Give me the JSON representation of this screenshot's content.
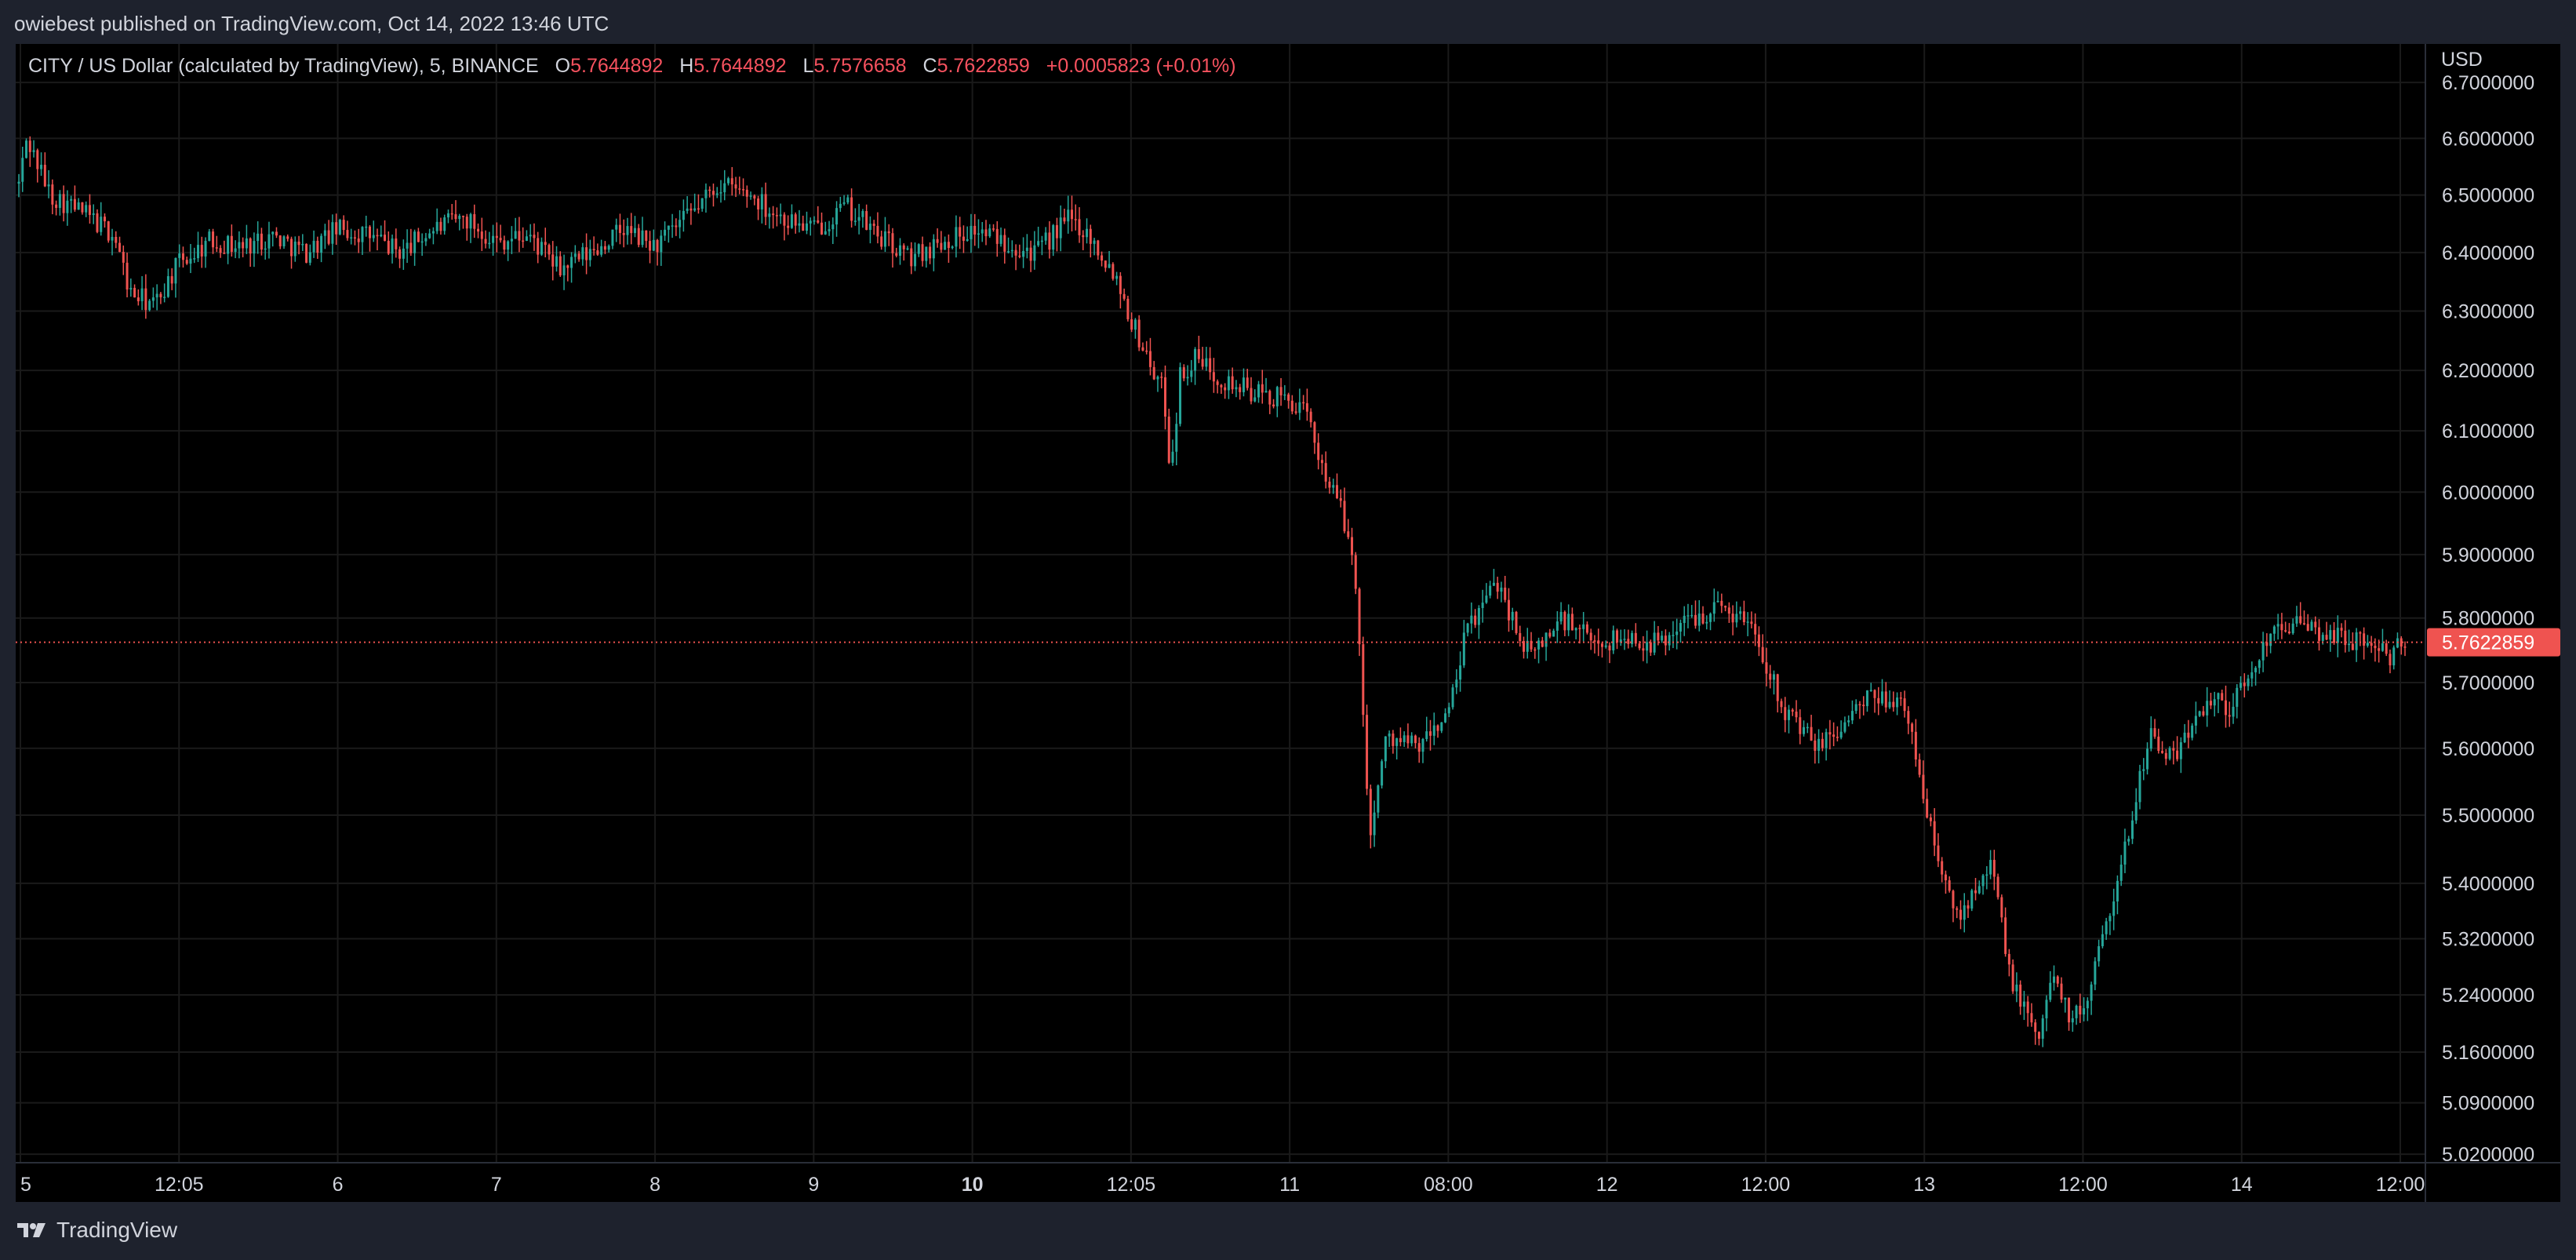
{
  "header": {
    "published_text": "owiebest published on TradingView.com, Oct 14, 2022 13:46 UTC"
  },
  "legend": {
    "symbol": "CITY / US Dollar (calculated by TradingView), 5, BINANCE",
    "open_label": "O",
    "open_value": "5.7644892",
    "high_label": "H",
    "high_value": "5.7644892",
    "low_label": "L",
    "low_value": "5.7576658",
    "close_label": "C",
    "close_value": "5.7622859",
    "change": "+0.0005823 (+0.01%)"
  },
  "footer": {
    "brand": "TradingView",
    "logo_icon": "tradingview-logo-icon"
  },
  "colors": {
    "up": "#26a69a",
    "down": "#ef5350",
    "background": "#000000",
    "grid": "#1a1a1a",
    "price_line": "#ef5350"
  },
  "chart_data": {
    "type": "candlestick",
    "title": "CITY / US Dollar (calculated by TradingView), 5, BINANCE",
    "currency": "USD",
    "y_scale": "log",
    "ylim": [
      5.0,
      6.75
    ],
    "y_ticks": [
      "6.7000000",
      "6.6000000",
      "6.5000000",
      "6.4000000",
      "6.3000000",
      "6.2000000",
      "6.1000000",
      "6.0000000",
      "5.9000000",
      "5.8000000",
      "5.7000000",
      "5.6000000",
      "5.5000000",
      "5.4000000",
      "5.3200000",
      "5.2400000",
      "5.1600000",
      "5.0900000",
      "5.0200000"
    ],
    "x_ticks": [
      "5",
      "12:05",
      "6",
      "7",
      "8",
      "9",
      "10",
      "12:05",
      "11",
      "08:00",
      "12",
      "12:00",
      "13",
      "12:00",
      "14",
      "12:00"
    ],
    "x_ticks_bold": [
      "10"
    ],
    "last_price": "5.7622859",
    "path": [
      [
        0,
        6.52
      ],
      [
        0.5,
        6.6
      ],
      [
        2,
        6.5
      ],
      [
        4,
        6.47
      ],
      [
        6,
        6.43
      ],
      [
        7,
        6.33
      ],
      [
        8.5,
        6.31
      ],
      [
        10,
        6.38
      ],
      [
        12,
        6.42
      ],
      [
        14,
        6.41
      ],
      [
        16,
        6.43
      ],
      [
        18,
        6.4
      ],
      [
        20,
        6.44
      ],
      [
        22,
        6.43
      ],
      [
        24,
        6.4
      ],
      [
        26,
        6.44
      ],
      [
        28,
        6.46
      ],
      [
        30,
        6.42
      ],
      [
        32,
        6.43
      ],
      [
        34,
        6.37
      ],
      [
        36,
        6.4
      ],
      [
        38,
        6.44
      ],
      [
        40,
        6.41
      ],
      [
        42,
        6.46
      ],
      [
        44,
        6.52
      ],
      [
        46,
        6.5
      ],
      [
        48,
        6.46
      ],
      [
        50,
        6.44
      ],
      [
        52,
        6.48
      ],
      [
        54,
        6.43
      ],
      [
        56,
        6.39
      ],
      [
        58,
        6.42
      ],
      [
        60,
        6.44
      ],
      [
        62,
        6.42
      ],
      [
        64,
        6.4
      ],
      [
        66,
        6.46
      ],
      [
        67,
        6.44
      ],
      [
        68,
        6.4
      ],
      [
        69,
        6.36
      ],
      [
        70,
        6.28
      ],
      [
        71,
        6.22
      ],
      [
        72,
        6.16
      ],
      [
        72.4,
        6.03
      ],
      [
        73,
        6.19
      ],
      [
        74,
        6.22
      ],
      [
        76,
        6.18
      ],
      [
        78,
        6.16
      ],
      [
        80,
        6.15
      ],
      [
        81,
        6.12
      ],
      [
        82,
        6.04
      ],
      [
        83,
        5.98
      ],
      [
        84,
        5.88
      ],
      [
        84.7,
        5.55
      ],
      [
        85,
        5.48
      ],
      [
        86,
        5.62
      ],
      [
        88,
        5.6
      ],
      [
        90,
        5.66
      ],
      [
        91,
        5.78
      ],
      [
        92,
        5.82
      ],
      [
        93,
        5.86
      ],
      [
        94,
        5.79
      ],
      [
        95,
        5.74
      ],
      [
        97,
        5.8
      ],
      [
        99,
        5.76
      ],
      [
        101,
        5.77
      ],
      [
        103,
        5.76
      ],
      [
        105,
        5.8
      ],
      [
        107,
        5.82
      ],
      [
        109,
        5.79
      ],
      [
        110,
        5.72
      ],
      [
        111,
        5.66
      ],
      [
        113,
        5.6
      ],
      [
        114,
        5.62
      ],
      [
        116,
        5.67
      ],
      [
        118,
        5.68
      ],
      [
        119,
        5.62
      ],
      [
        120,
        5.5
      ],
      [
        121,
        5.4
      ],
      [
        122,
        5.35
      ],
      [
        123,
        5.4
      ],
      [
        124,
        5.44
      ],
      [
        125,
        5.28
      ],
      [
        126,
        5.22
      ],
      [
        127,
        5.18
      ],
      [
        128,
        5.28
      ],
      [
        129,
        5.2
      ],
      [
        130,
        5.23
      ],
      [
        131,
        5.34
      ],
      [
        132,
        5.4
      ],
      [
        133,
        5.52
      ],
      [
        134,
        5.63
      ],
      [
        135,
        5.58
      ],
      [
        136,
        5.6
      ],
      [
        137,
        5.66
      ],
      [
        138,
        5.68
      ],
      [
        139,
        5.66
      ],
      [
        140,
        5.7
      ],
      [
        141,
        5.75
      ],
      [
        142,
        5.8
      ],
      [
        144,
        5.78
      ],
      [
        146,
        5.77
      ],
      [
        148,
        5.76
      ],
      [
        149,
        5.74
      ],
      [
        150,
        5.7622859
      ]
    ]
  }
}
